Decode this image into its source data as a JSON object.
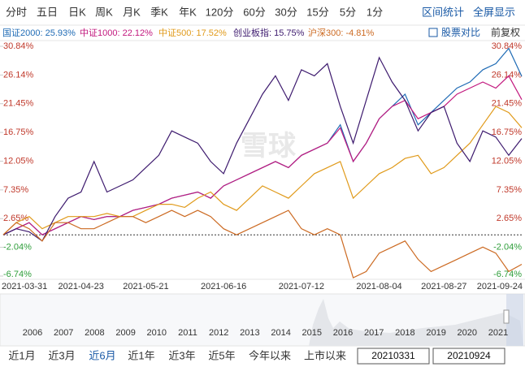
{
  "toolbar": {
    "tabs": [
      "分时",
      "五日",
      "日K",
      "周K",
      "月K",
      "季K",
      "年K",
      "120分",
      "60分",
      "30分",
      "15分",
      "5分",
      "1分"
    ],
    "actions": [
      "区间统计",
      "全屏显示"
    ]
  },
  "options": [
    "股票对比",
    "前复权"
  ],
  "watermark": "雪球",
  "chart_data": {
    "type": "line",
    "categories": [
      "2021-03-31",
      null,
      null,
      null,
      null,
      null,
      "2021-04-23",
      null,
      null,
      null,
      null,
      "2021-05-21",
      null,
      null,
      null,
      null,
      null,
      "2021-06-16",
      null,
      null,
      null,
      null,
      null,
      "2021-07-12",
      null,
      null,
      null,
      null,
      null,
      "2021-08-04",
      null,
      null,
      null,
      null,
      "2021-08-27",
      null,
      null,
      null,
      null,
      null,
      "2021-09-24"
    ],
    "series": [
      {
        "name": "国证2000: 25.93%",
        "color": "#1f6bb5",
        "values": [
          0,
          1,
          2,
          0,
          1,
          2,
          3,
          2.5,
          3,
          3,
          4,
          4.5,
          5,
          6,
          6.5,
          7,
          6,
          8,
          9,
          10,
          11,
          12,
          11,
          13,
          14,
          15,
          18,
          12,
          15,
          19,
          21,
          23,
          18,
          20,
          22,
          24,
          25,
          27,
          28,
          30.5,
          25.93
        ]
      },
      {
        "name": "中证1000: 22.12%",
        "color": "#c2187e",
        "values": [
          0,
          1,
          2,
          0,
          1,
          2,
          3,
          2.5,
          3,
          3,
          4,
          4.5,
          5,
          6,
          6.5,
          7,
          6,
          8,
          9,
          10,
          11,
          12,
          11,
          13,
          14,
          15,
          17.5,
          12,
          15,
          19,
          21,
          22,
          19,
          20,
          21,
          23,
          24,
          25,
          24,
          26,
          22.12
        ]
      },
      {
        "name": "中证500: 17.52%",
        "color": "#e09a1a",
        "values": [
          0,
          2,
          3,
          1,
          2,
          3,
          3,
          3,
          3.5,
          3,
          3,
          4,
          5,
          5,
          4.5,
          6,
          7,
          5,
          4,
          6,
          8,
          7,
          6,
          8,
          10,
          11,
          12,
          6,
          8,
          10,
          11,
          12.5,
          13,
          10,
          11,
          13,
          15,
          18,
          21,
          20,
          17.52
        ]
      },
      {
        "name": "创业板指: 15.75%",
        "color": "#3d1a6e",
        "values": [
          0,
          1,
          0.5,
          -1,
          3,
          6,
          7,
          12,
          7,
          8,
          9,
          11,
          13,
          17,
          16,
          15,
          12,
          10,
          15,
          19,
          23,
          26,
          22,
          27,
          26,
          28,
          21,
          15,
          22,
          29,
          25,
          22,
          17,
          20,
          21,
          15,
          12,
          17,
          16,
          13,
          15.75
        ]
      },
      {
        "name": "沪深300: -4.81%",
        "color": "#cc6a22",
        "values": [
          0,
          2,
          1,
          -1,
          2,
          2,
          1,
          1,
          2,
          3,
          3,
          2,
          3,
          4,
          3,
          4,
          3,
          1,
          0,
          1,
          2,
          3,
          4,
          1,
          0,
          1,
          0,
          -7,
          -6,
          -3,
          -2,
          -1,
          -4,
          -6,
          -5,
          -4,
          -3,
          -2,
          -3,
          -6,
          -4.81
        ]
      }
    ],
    "ylim": [
      -6.74,
      30.84
    ],
    "yticks": [
      {
        "value": 30.84,
        "label": "30.84%"
      },
      {
        "value": 26.14,
        "label": "26.14%"
      },
      {
        "value": 21.45,
        "label": "21.45%"
      },
      {
        "value": 16.75,
        "label": "16.75%"
      },
      {
        "value": 12.05,
        "label": "12.05%"
      },
      {
        "value": 7.35,
        "label": "7.35%"
      },
      {
        "value": 2.65,
        "label": "2.65%"
      },
      {
        "value": -2.04,
        "label": "-2.04%"
      },
      {
        "value": -6.74,
        "label": "-6.74%"
      }
    ],
    "positive_color": "#c0392b",
    "negative_color": "#2e9e3a",
    "zero_line": true
  },
  "navigator": {
    "years": [
      "2006",
      "2007",
      "2008",
      "2009",
      "2010",
      "2011",
      "2012",
      "2013",
      "2014",
      "2015",
      "2016",
      "2017",
      "2018",
      "2019",
      "2020",
      "2021"
    ]
  },
  "range_buttons": [
    "近1月",
    "近3月",
    "近6月",
    "近1年",
    "近3年",
    "近5年",
    "今年以来",
    "上市以来"
  ],
  "active_range": 2,
  "date_inputs": [
    "20210331",
    "20210924"
  ]
}
